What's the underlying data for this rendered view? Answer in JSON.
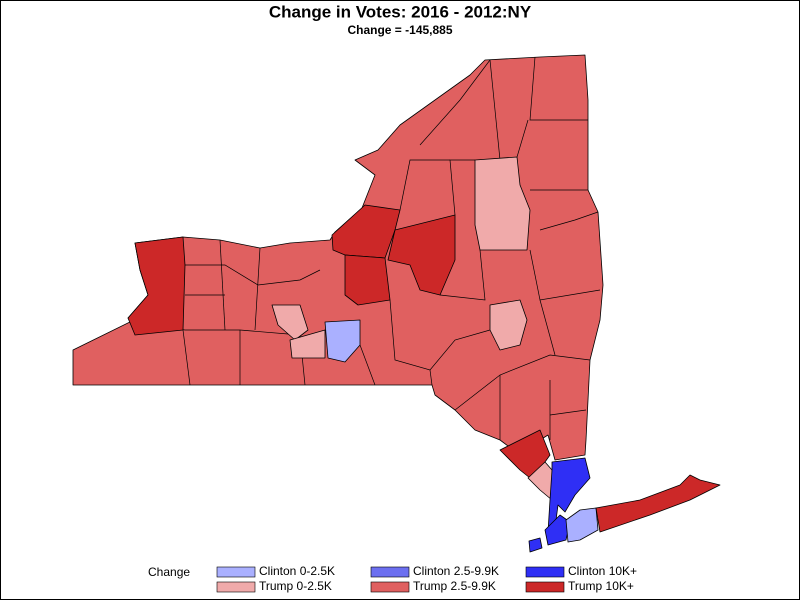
{
  "title": "Change in Votes: 2016 - 2012:NY",
  "subtitle": "Change = -145,885",
  "legend": {
    "title": "Change",
    "items": [
      {
        "label": "Clinton 0-2.5K",
        "color": "#aab0ff"
      },
      {
        "label": "Clinton 2.5-9.9K",
        "color": "#6c6ff0"
      },
      {
        "label": "Clinton 10K+",
        "color": "#2f2ff5"
      },
      {
        "label": "Trump 0-2.5K",
        "color": "#f0aaaa"
      },
      {
        "label": "Trump 2.5-9.9K",
        "color": "#e06060"
      },
      {
        "label": "Trump 10K+",
        "color": "#cc2828"
      }
    ]
  }
}
